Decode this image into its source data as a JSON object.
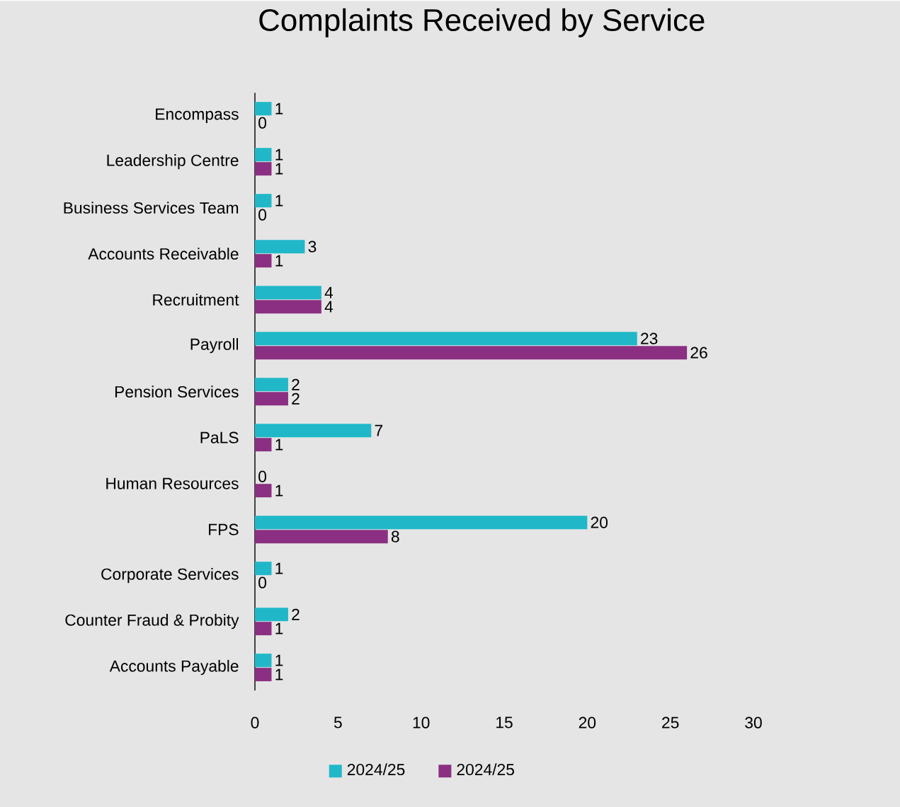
{
  "chart_data": {
    "type": "bar",
    "orientation": "horizontal",
    "title": "Complaints Received by Service",
    "categories": [
      "Encompass",
      "Leadership Centre",
      "Business Services Team",
      "Accounts Receivable",
      "Recruitment",
      "Payroll",
      "Pension Services",
      "PaLS",
      "Human Resources",
      "FPS",
      "Corporate Services",
      "Counter Fraud & Probity",
      "Accounts Payable"
    ],
    "series": [
      {
        "name": "2024/25",
        "color": "#20b8c8",
        "values": [
          1,
          1,
          1,
          3,
          4,
          23,
          2,
          7,
          0,
          20,
          1,
          2,
          1
        ]
      },
      {
        "name": "2024/25",
        "color": "#8b2f82",
        "values": [
          0,
          1,
          0,
          1,
          4,
          26,
          2,
          1,
          1,
          8,
          0,
          1,
          1
        ]
      }
    ],
    "xlim": [
      0,
      30
    ],
    "xticks": [
      0,
      5,
      10,
      15,
      20,
      25,
      30
    ],
    "grid": false,
    "legend": "bottom",
    "data_labels": true
  }
}
